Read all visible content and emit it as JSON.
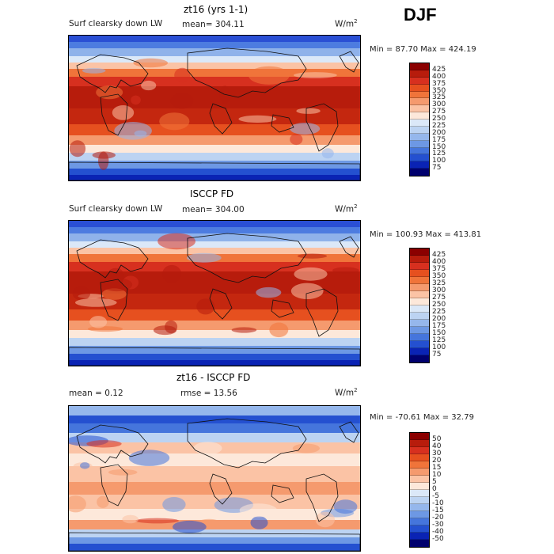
{
  "season": "DJF",
  "panels": [
    {
      "title": "zt16 (yrs 1-1)",
      "variable": "Surf clearsky down LW",
      "stat1": "mean=  304.11",
      "stat2": "",
      "units": "W/m",
      "units_sup": "2",
      "minmax": "Min =   87.70 Max =  424.19",
      "colorbar_labels": [
        "425",
        "400",
        "375",
        "350",
        "325",
        "300",
        "275",
        "250",
        "225",
        "200",
        "175",
        "150",
        "125",
        "100",
        "75"
      ],
      "colorbar_colors": [
        "#8b0000",
        "#b71c0c",
        "#d7301f",
        "#e6501f",
        "#f0743a",
        "#f59a6e",
        "#fbc3a5",
        "#fde8da",
        "#dbe8f8",
        "#bcd3f2",
        "#95b7ec",
        "#6d98e4",
        "#4575dc",
        "#2450d0",
        "#0a23b4",
        "#00006e"
      ],
      "field": "abs"
    },
    {
      "title": "ISCCP FD",
      "variable": "Surf clearsky down LW",
      "stat1": "mean=  304.00",
      "stat2": "",
      "units": "W/m",
      "units_sup": "2",
      "minmax": "Min = 100.93 Max = 413.81",
      "colorbar_labels": [
        "425",
        "400",
        "375",
        "350",
        "325",
        "300",
        "275",
        "250",
        "225",
        "200",
        "175",
        "150",
        "125",
        "100",
        "75"
      ],
      "colorbar_colors": [
        "#8b0000",
        "#b71c0c",
        "#d7301f",
        "#e6501f",
        "#f0743a",
        "#f59a6e",
        "#fbc3a5",
        "#fde8da",
        "#dbe8f8",
        "#bcd3f2",
        "#95b7ec",
        "#6d98e4",
        "#4575dc",
        "#2450d0",
        "#0a23b4",
        "#00006e"
      ],
      "field": "abs"
    },
    {
      "title": "zt16 - ISCCP FD",
      "variable": "",
      "stat1": "mean =    0.12",
      "stat2": "rmse =   13.56",
      "units": "W/m",
      "units_sup": "2",
      "minmax": "Min =  -70.61 Max =   32.79",
      "colorbar_labels": [
        "50",
        "40",
        "30",
        "20",
        "15",
        "10",
        "5",
        "0",
        "-5",
        "-10",
        "-15",
        "-20",
        "-30",
        "-40",
        "-50"
      ],
      "colorbar_colors": [
        "#8b0000",
        "#b71c0c",
        "#d7301f",
        "#e6501f",
        "#f0743a",
        "#f59a6e",
        "#fbc3a5",
        "#fde8da",
        "#dbe8f8",
        "#bcd3f2",
        "#95b7ec",
        "#6d98e4",
        "#4575dc",
        "#2450d0",
        "#0a23b4",
        "#00006e"
      ],
      "field": "diff"
    }
  ]
}
